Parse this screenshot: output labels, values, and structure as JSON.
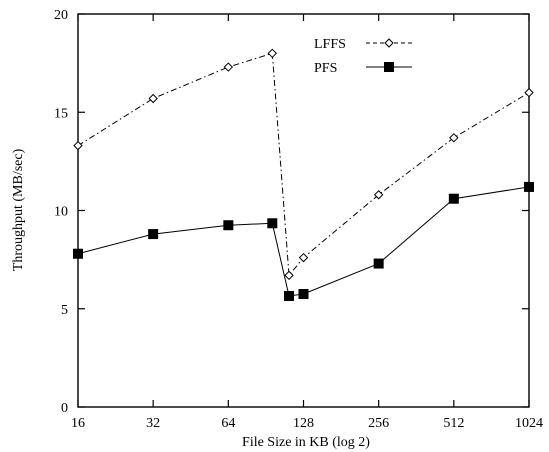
{
  "chart_data": {
    "type": "line",
    "title": "",
    "xlabel": "File Size in KB (log 2)",
    "ylabel": "Throughput (MB/sec)",
    "x_scale": "log2",
    "xlim": [
      16,
      1024
    ],
    "ylim": [
      0,
      20
    ],
    "x_ticks": [
      16,
      32,
      64,
      128,
      256,
      512,
      1024
    ],
    "x_tick_labels": [
      "16",
      "32",
      "64",
      "128",
      "256",
      "512",
      "1024"
    ],
    "y_ticks": [
      0,
      5,
      10,
      15,
      20
    ],
    "y_tick_labels": [
      "0",
      "5",
      "10",
      "15",
      "20"
    ],
    "grid": false,
    "legend_position": "top-center",
    "series": [
      {
        "name": "LFFS",
        "marker": "open-diamond",
        "line_style": "dash-dot",
        "color": "#000000",
        "x": [
          16,
          32,
          64,
          96,
          112,
          128,
          256,
          512,
          1024
        ],
        "y": [
          13.3,
          15.7,
          17.3,
          18.0,
          6.7,
          7.6,
          10.8,
          13.7,
          16.0
        ]
      },
      {
        "name": "PFS",
        "marker": "filled-square",
        "line_style": "solid",
        "color": "#000000",
        "x": [
          16,
          32,
          64,
          96,
          112,
          128,
          256,
          512,
          1024
        ],
        "y": [
          7.8,
          8.8,
          9.25,
          9.35,
          5.65,
          5.75,
          7.3,
          10.6,
          11.2
        ]
      }
    ]
  }
}
